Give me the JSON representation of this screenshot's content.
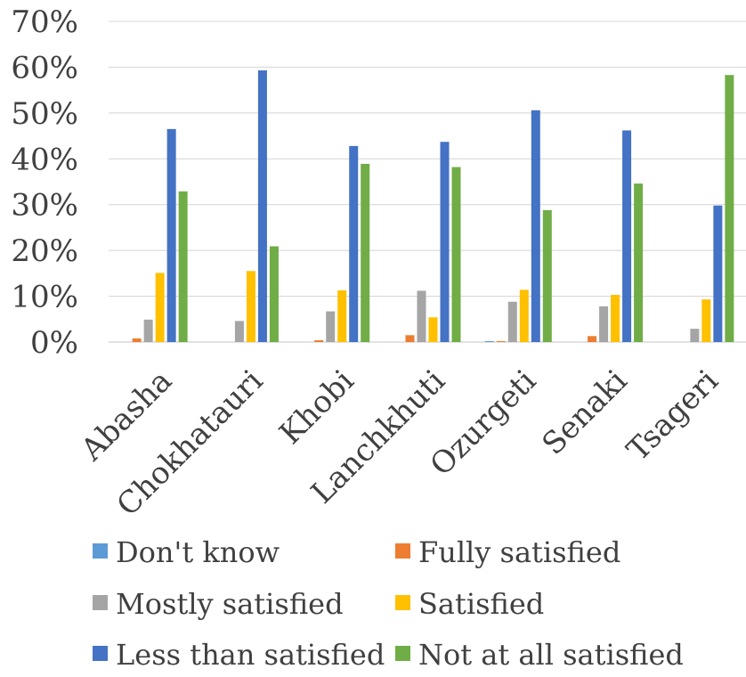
{
  "chart_data": {
    "type": "bar",
    "title": "",
    "xlabel": "",
    "ylabel": "",
    "ylim": [
      0,
      70
    ],
    "y_ticks": [
      "0%",
      "10%",
      "20%",
      "30%",
      "40%",
      "50%",
      "60%",
      "70%"
    ],
    "y_tick_values": [
      0,
      10,
      20,
      30,
      40,
      50,
      60,
      70
    ],
    "grid": true,
    "legend_position": "bottom",
    "categories": [
      "Abasha",
      "Chokhatauri",
      "Khobi",
      "Lanchkhuti",
      "Ozurgeti",
      "Senaki",
      "Tsageri"
    ],
    "series": [
      {
        "name": "Don't know",
        "color": "#5B9BD5",
        "values": [
          0,
          0,
          0,
          0,
          0.2,
          0,
          0
        ]
      },
      {
        "name": "Fully satisfied",
        "color": "#ED7D31",
        "values": [
          0.8,
          0,
          0.4,
          1.5,
          0.2,
          1.3,
          0
        ]
      },
      {
        "name": "Mostly satisfied",
        "color": "#A5A5A5",
        "values": [
          4.9,
          4.6,
          6.7,
          11.2,
          8.8,
          7.8,
          2.9
        ]
      },
      {
        "name": "Satisfied",
        "color": "#FFC000",
        "values": [
          15.1,
          15.5,
          11.3,
          5.4,
          11.4,
          10.3,
          9.3
        ]
      },
      {
        "name": "Less than satisfied",
        "color": "#4472C4",
        "values": [
          46.5,
          59.3,
          42.8,
          43.7,
          50.6,
          46.2,
          29.8
        ]
      },
      {
        "name": "Not at all satisfied",
        "color": "#70AD47",
        "values": [
          32.9,
          20.9,
          38.9,
          38.2,
          28.8,
          34.6,
          58.3
        ]
      }
    ]
  }
}
